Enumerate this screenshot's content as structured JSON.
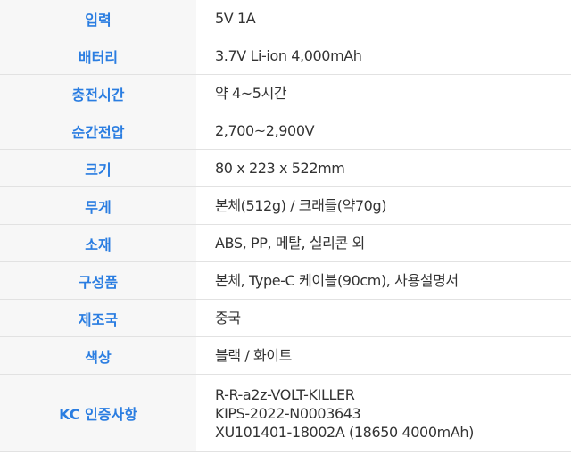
{
  "colors": {
    "label_text": "#2a7de1",
    "label_bg": "#f7f7f7",
    "value_text": "#333333"
  },
  "specs": [
    {
      "label": "입력",
      "value": [
        "5V 1A"
      ]
    },
    {
      "label": "배터리",
      "value": [
        "3.7V Li-ion 4,000mAh"
      ]
    },
    {
      "label": "충전시간",
      "value": [
        "약 4~5시간"
      ]
    },
    {
      "label": "순간전압",
      "value": [
        "2,700~2,900V"
      ]
    },
    {
      "label": "크기",
      "value": [
        "80 x 223 x 522mm"
      ]
    },
    {
      "label": "무게",
      "value": [
        "본체(512g) / 크래들(약70g)"
      ]
    },
    {
      "label": "소재",
      "value": [
        "ABS, PP, 메탈, 실리콘 외"
      ]
    },
    {
      "label": "구성품",
      "value": [
        "본체, Type-C 케이블(90cm), 사용설명서"
      ]
    },
    {
      "label": "제조국",
      "value": [
        "중국"
      ]
    },
    {
      "label": "색상",
      "value": [
        "블랙 / 화이트"
      ]
    },
    {
      "label": "KC 인증사항",
      "value": [
        "R-R-a2z-VOLT-KILLER",
        "KIPS-2022-N0003643",
        "XU101401-18002A (18650 4000mAh)"
      ]
    }
  ]
}
